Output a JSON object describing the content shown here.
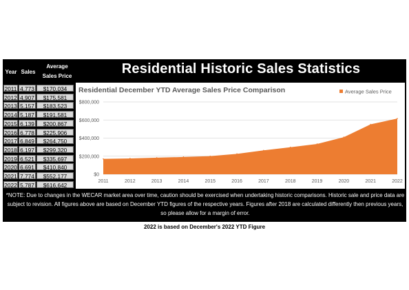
{
  "table": {
    "headers": {
      "year": "Year",
      "sales": "Sales",
      "price_line1": "Average",
      "price_line2": "Sales Price"
    },
    "rows": [
      {
        "year": "2011",
        "sales": "4,773",
        "price": "$170,034"
      },
      {
        "year": "2012",
        "sales": "4,907",
        "price": "$175,581"
      },
      {
        "year": "2013",
        "sales": "5,157",
        "price": "$183,523"
      },
      {
        "year": "2014",
        "sales": "5,187",
        "price": "$191,581"
      },
      {
        "year": "2015",
        "sales": "6,139",
        "price": "$200,867"
      },
      {
        "year": "2016",
        "sales": "6,778",
        "price": "$225,906"
      },
      {
        "year": "2017",
        "sales": "6,849",
        "price": "$264,750"
      },
      {
        "year": "2018",
        "sales": "6,197",
        "price": "$299,320"
      },
      {
        "year": "2019",
        "sales": "6,521",
        "price": "$335,697"
      },
      {
        "year": "2020",
        "sales": "6,691",
        "price": "$410,840"
      },
      {
        "year": "2021",
        "sales": "7,774",
        "price": "$552,177"
      },
      {
        "year": "2022",
        "sales": "5,787",
        "price": "$616,642"
      }
    ]
  },
  "header": {
    "title": "Residential Historic Sales Statistics"
  },
  "notes": {
    "text": "*NOTE: Due to changes in the WECAR market area over time, caution should be exercised when undertaking historic comparisons. Historic sale and price data are subject to revision. All figures above are based on December YTD figures of the respective years. Figures after 2018 are calculated differently then previous years, so please allow for a margin of error.",
    "footer": "2022 is based on December's 2022 YTD Figure"
  },
  "chart_data": {
    "type": "area",
    "title": "Residential December YTD Average Sales Price Comparison",
    "x": [
      "2011",
      "2012",
      "2013",
      "2014",
      "2015",
      "2016",
      "2017",
      "2018",
      "2019",
      "2020",
      "2021",
      "2022"
    ],
    "series": [
      {
        "name": "Average Sales Price",
        "color": "#ed7d31",
        "values": [
          170034,
          175581,
          183523,
          191581,
          200867,
          225906,
          264750,
          299320,
          335697,
          410840,
          552177,
          616642
        ]
      }
    ],
    "yticks": [
      "$0",
      "$200,000",
      "$400,000",
      "$600,000",
      "$800,000"
    ],
    "ylim": [
      0,
      800000
    ],
    "legend": "top-right",
    "grid": true
  }
}
